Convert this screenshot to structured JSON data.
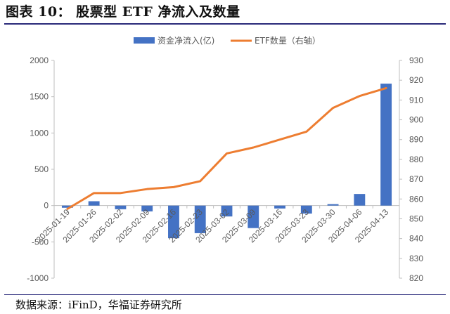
{
  "header": {
    "title": "图表 10：  股票型 ETF 净流入及数量"
  },
  "footer": {
    "source": "数据来源：iFinD，华福证券研究所"
  },
  "chart_data": {
    "type": "bar+line",
    "categories": [
      "2025-01-19",
      "2025-01-26",
      "2025-02-02",
      "2025-02-09",
      "2025-02-16",
      "2025-02-23",
      "2025-03-02",
      "2025-03-09",
      "2025-03-16",
      "2025-03-23",
      "2025-03-30",
      "2025-04-06",
      "2025-04-13"
    ],
    "series": [
      {
        "name": "资金净流入(亿)",
        "type": "bar",
        "axis": "left",
        "color": "#4472C4",
        "values": [
          -30,
          60,
          -50,
          -80,
          -450,
          -380,
          -150,
          -310,
          -40,
          -110,
          20,
          160,
          1680
        ]
      },
      {
        "name": "ETF数量（右轴）",
        "type": "line",
        "axis": "right",
        "color": "#ED7D31",
        "values": [
          855,
          863,
          863,
          865,
          866,
          869,
          883,
          886,
          890,
          894,
          906,
          912,
          916
        ]
      }
    ],
    "yleft": {
      "ticks": [
        "-1000",
        "-500",
        "0",
        "500",
        "1000",
        "1500",
        "2000"
      ],
      "lim": [
        -1000,
        2000
      ]
    },
    "yright": {
      "ticks": [
        "820",
        "830",
        "840",
        "850",
        "860",
        "870",
        "880",
        "890",
        "900",
        "910",
        "920",
        "930"
      ],
      "lim": [
        820,
        930
      ]
    },
    "legend_position": "top-center",
    "grid": false
  }
}
